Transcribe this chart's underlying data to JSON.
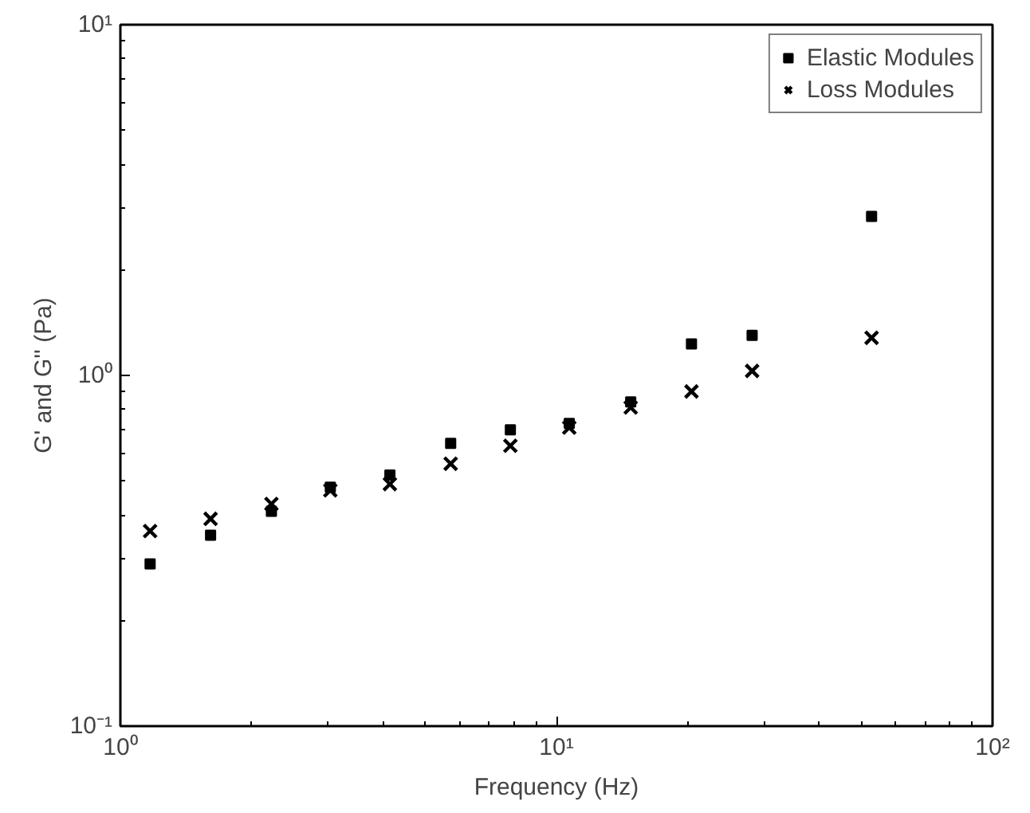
{
  "chart_data": {
    "type": "scatter",
    "xlabel": "Frequency (Hz)",
    "ylabel": "G' and G'' (Pa)",
    "log": "xy",
    "grid": false,
    "legend": "top right",
    "x": [
      1.17,
      1.61,
      2.22,
      3.03,
      4.15,
      5.72,
      7.84,
      10.7,
      14.8,
      20.4,
      28.1,
      52.8
    ],
    "xlim": [
      1,
      100
    ],
    "ylim": [
      0.1,
      10
    ],
    "xticks": [
      {
        "value": 1,
        "label": "10⁰"
      },
      {
        "value": 10,
        "label": "10¹"
      },
      {
        "value": 100,
        "label": "10²"
      }
    ],
    "yticks": [
      {
        "value": 0.1,
        "label": "10⁻¹"
      },
      {
        "value": 1,
        "label": "10⁰"
      },
      {
        "value": 10,
        "label": "10¹"
      }
    ],
    "series": [
      {
        "name": "Elastic Modules",
        "color": "#000000",
        "marker": "square",
        "values": [
          0.29,
          0.35,
          0.41,
          0.48,
          0.52,
          0.64,
          0.7,
          0.73,
          0.84,
          1.23,
          1.3,
          2.84
        ]
      },
      {
        "name": "Loss Modules",
        "color": "#000000",
        "marker": "cross",
        "values": [
          0.36,
          0.39,
          0.43,
          0.47,
          0.49,
          0.56,
          0.63,
          0.71,
          0.81,
          0.9,
          1.03,
          1.28
        ]
      }
    ]
  }
}
